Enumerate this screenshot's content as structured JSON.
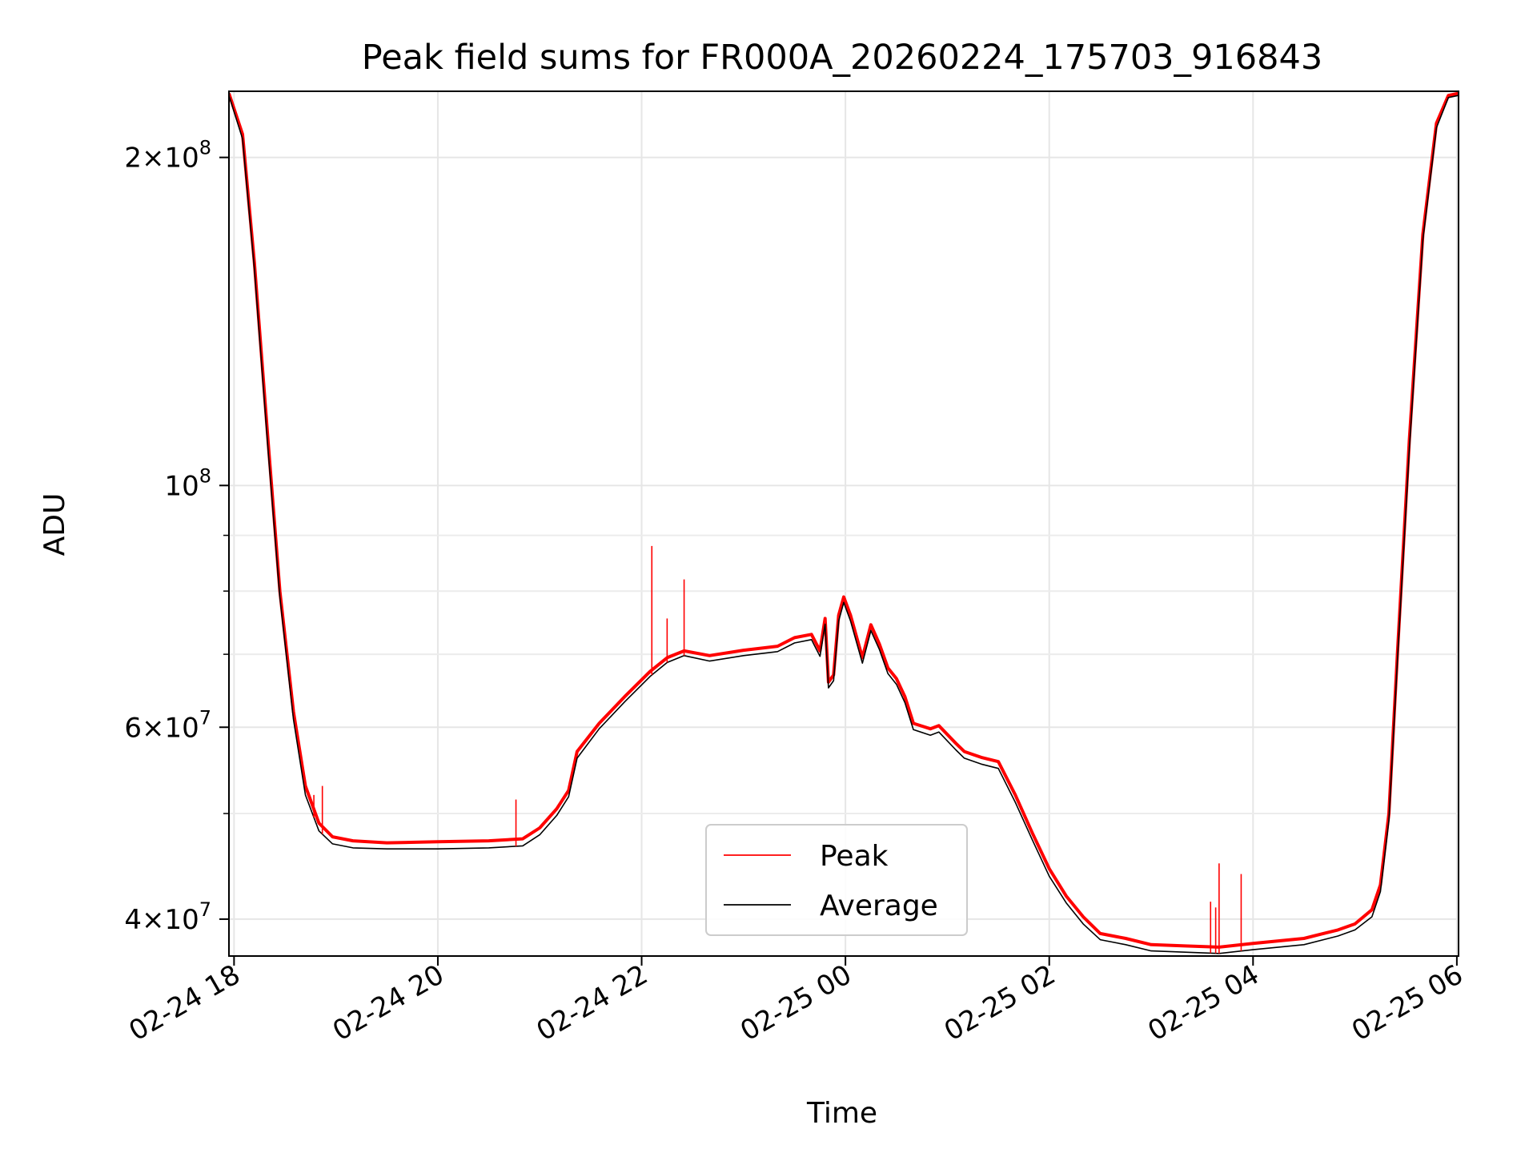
{
  "chart_data": {
    "type": "line",
    "title": "Peak field sums for FR000A_20260224_175703_916843",
    "xlabel": "Time",
    "ylabel": "ADU",
    "y_scale": "log",
    "grid": true,
    "legend_position": "lower-center",
    "x_range": [
      "02-24 17:57",
      "02-25 06:01"
    ],
    "ylim": [
      37000000,
      230000000
    ],
    "x_ticks": [
      {
        "t": "02-24 18:00",
        "label": "02-24 18"
      },
      {
        "t": "02-24 20:00",
        "label": "02-24 20"
      },
      {
        "t": "02-24 22:00",
        "label": "02-24 22"
      },
      {
        "t": "02-25 00:00",
        "label": "02-25 00"
      },
      {
        "t": "02-25 02:00",
        "label": "02-25 02"
      },
      {
        "t": "02-25 04:00",
        "label": "02-25 04"
      },
      {
        "t": "02-25 06:00",
        "label": "02-25 06"
      }
    ],
    "y_ticks": [
      {
        "value": 40000000,
        "mantissa": "4",
        "exponent": "7"
      },
      {
        "value": 60000000,
        "mantissa": "6",
        "exponent": "7"
      },
      {
        "value": 100000000,
        "mantissa": "",
        "exponent": "8"
      },
      {
        "value": 200000000,
        "mantissa": "2",
        "exponent": "8"
      }
    ],
    "y_minor_ticks": [
      50000000,
      70000000,
      80000000,
      90000000
    ],
    "series": [
      {
        "name": "Peak",
        "color": "#ff0000",
        "points": [
          [
            "02-24 17:57",
            229000000
          ],
          [
            "02-24 18:05",
            210000000
          ],
          [
            "02-24 18:12",
            160000000
          ],
          [
            "02-24 18:20",
            110000000
          ],
          [
            "02-24 18:27",
            80000000
          ],
          [
            "02-24 18:35",
            62000000
          ],
          [
            "02-24 18:42",
            53000000
          ],
          [
            "02-24 18:50",
            49000000
          ],
          [
            "02-24 18:58",
            47600000
          ],
          [
            "02-24 19:10",
            47200000
          ],
          [
            "02-24 19:30",
            47000000
          ],
          [
            "02-24 20:00",
            47100000
          ],
          [
            "02-24 20:30",
            47200000
          ],
          [
            "02-24 20:50",
            47400000
          ],
          [
            "02-24 21:00",
            48500000
          ],
          [
            "02-24 21:10",
            50500000
          ],
          [
            "02-24 21:17",
            52500000
          ],
          [
            "02-24 21:22",
            57000000
          ],
          [
            "02-24 21:35",
            60500000
          ],
          [
            "02-24 21:50",
            64000000
          ],
          [
            "02-24 22:05",
            67500000
          ],
          [
            "02-24 22:15",
            69500000
          ],
          [
            "02-24 22:25",
            70500000
          ],
          [
            "02-24 22:40",
            69800000
          ],
          [
            "02-24 23:00",
            70600000
          ],
          [
            "02-24 23:20",
            71200000
          ],
          [
            "02-24 23:30",
            72500000
          ],
          [
            "02-24 23:40",
            73000000
          ],
          [
            "02-24 23:45",
            70500000
          ],
          [
            "02-24 23:48",
            75500000
          ],
          [
            "02-24 23:50",
            66000000
          ],
          [
            "02-24 23:53",
            67000000
          ],
          [
            "02-24 23:56",
            76000000
          ],
          [
            "02-24 23:59",
            79000000
          ],
          [
            "02-25 00:03",
            76000000
          ],
          [
            "02-25 00:10",
            69500000
          ],
          [
            "02-25 00:15",
            74500000
          ],
          [
            "02-25 00:20",
            71500000
          ],
          [
            "02-25 00:25",
            68000000
          ],
          [
            "02-25 00:30",
            66500000
          ],
          [
            "02-25 00:35",
            64000000
          ],
          [
            "02-25 00:40",
            60500000
          ],
          [
            "02-25 00:50",
            59800000
          ],
          [
            "02-25 00:55",
            60200000
          ],
          [
            "02-25 01:05",
            58000000
          ],
          [
            "02-25 01:10",
            57000000
          ],
          [
            "02-25 01:20",
            56300000
          ],
          [
            "02-25 01:30",
            55800000
          ],
          [
            "02-25 01:40",
            52000000
          ],
          [
            "02-25 01:50",
            48000000
          ],
          [
            "02-25 02:00",
            44500000
          ],
          [
            "02-25 02:10",
            42000000
          ],
          [
            "02-25 02:20",
            40200000
          ],
          [
            "02-25 02:30",
            38800000
          ],
          [
            "02-25 02:45",
            38400000
          ],
          [
            "02-25 03:00",
            37900000
          ],
          [
            "02-25 03:20",
            37800000
          ],
          [
            "02-25 03:40",
            37700000
          ],
          [
            "02-25 04:00",
            38000000
          ],
          [
            "02-25 04:30",
            38400000
          ],
          [
            "02-25 04:50",
            39100000
          ],
          [
            "02-25 05:00",
            39600000
          ],
          [
            "02-25 05:10",
            40800000
          ],
          [
            "02-25 05:15",
            43000000
          ],
          [
            "02-25 05:20",
            50000000
          ],
          [
            "02-25 05:25",
            70000000
          ],
          [
            "02-25 05:32",
            110000000
          ],
          [
            "02-25 05:40",
            170000000
          ],
          [
            "02-25 05:48",
            215000000
          ],
          [
            "02-25 05:55",
            228000000
          ],
          [
            "02-25 06:01",
            229000000
          ]
        ]
      },
      {
        "name": "Average",
        "color": "#000000",
        "points": [
          [
            "02-24 17:57",
            228000000
          ],
          [
            "02-24 18:05",
            208000000
          ],
          [
            "02-24 18:12",
            158000000
          ],
          [
            "02-24 18:20",
            108000000
          ],
          [
            "02-24 18:27",
            79000000
          ],
          [
            "02-24 18:35",
            61000000
          ],
          [
            "02-24 18:42",
            52000000
          ],
          [
            "02-24 18:50",
            48200000
          ],
          [
            "02-24 18:58",
            46900000
          ],
          [
            "02-24 19:10",
            46500000
          ],
          [
            "02-24 19:30",
            46400000
          ],
          [
            "02-24 20:00",
            46400000
          ],
          [
            "02-24 20:30",
            46500000
          ],
          [
            "02-24 20:50",
            46700000
          ],
          [
            "02-24 21:00",
            47800000
          ],
          [
            "02-24 21:10",
            49800000
          ],
          [
            "02-24 21:17",
            51800000
          ],
          [
            "02-24 21:22",
            56200000
          ],
          [
            "02-24 21:35",
            59800000
          ],
          [
            "02-24 21:50",
            63300000
          ],
          [
            "02-24 22:05",
            66800000
          ],
          [
            "02-24 22:15",
            68800000
          ],
          [
            "02-24 22:25",
            69800000
          ],
          [
            "02-24 22:40",
            69000000
          ],
          [
            "02-24 23:00",
            69800000
          ],
          [
            "02-24 23:20",
            70400000
          ],
          [
            "02-24 23:30",
            71700000
          ],
          [
            "02-24 23:40",
            72200000
          ],
          [
            "02-24 23:45",
            69700000
          ],
          [
            "02-24 23:48",
            74600000
          ],
          [
            "02-24 23:50",
            65200000
          ],
          [
            "02-24 23:53",
            66200000
          ],
          [
            "02-24 23:56",
            75100000
          ],
          [
            "02-24 23:59",
            78100000
          ],
          [
            "02-25 00:03",
            75100000
          ],
          [
            "02-25 00:10",
            68700000
          ],
          [
            "02-25 00:15",
            73600000
          ],
          [
            "02-25 00:20",
            70700000
          ],
          [
            "02-25 00:25",
            67200000
          ],
          [
            "02-25 00:30",
            65700000
          ],
          [
            "02-25 00:35",
            63200000
          ],
          [
            "02-25 00:40",
            59700000
          ],
          [
            "02-25 00:50",
            59000000
          ],
          [
            "02-25 00:55",
            59400000
          ],
          [
            "02-25 01:05",
            57200000
          ],
          [
            "02-25 01:10",
            56200000
          ],
          [
            "02-25 01:20",
            55500000
          ],
          [
            "02-25 01:30",
            55000000
          ],
          [
            "02-25 01:40",
            51200000
          ],
          [
            "02-25 01:50",
            47300000
          ],
          [
            "02-25 02:00",
            43800000
          ],
          [
            "02-25 02:10",
            41400000
          ],
          [
            "02-25 02:20",
            39600000
          ],
          [
            "02-25 02:30",
            38300000
          ],
          [
            "02-25 02:45",
            37900000
          ],
          [
            "02-25 03:00",
            37400000
          ],
          [
            "02-25 03:20",
            37300000
          ],
          [
            "02-25 03:40",
            37200000
          ],
          [
            "02-25 04:00",
            37500000
          ],
          [
            "02-25 04:30",
            37900000
          ],
          [
            "02-25 04:50",
            38600000
          ],
          [
            "02-25 05:00",
            39100000
          ],
          [
            "02-25 05:10",
            40200000
          ],
          [
            "02-25 05:15",
            42400000
          ],
          [
            "02-25 05:20",
            49300000
          ],
          [
            "02-25 05:25",
            69000000
          ],
          [
            "02-25 05:32",
            108000000
          ],
          [
            "02-25 05:40",
            168000000
          ],
          [
            "02-25 05:48",
            213000000
          ],
          [
            "02-25 05:55",
            227000000
          ],
          [
            "02-25 06:01",
            228000000
          ]
        ]
      }
    ],
    "peak_spikes": [
      [
        "02-24 18:47",
        52000000
      ],
      [
        "02-24 18:52",
        53000000
      ],
      [
        "02-24 20:46",
        51500000
      ],
      [
        "02-24 22:06",
        88000000
      ],
      [
        "02-24 22:15",
        75500000
      ],
      [
        "02-24 22:25",
        82000000
      ],
      [
        "02-25 03:35",
        41500000
      ],
      [
        "02-25 03:38",
        41000000
      ],
      [
        "02-25 03:40",
        45000000
      ],
      [
        "02-25 03:53",
        44000000
      ]
    ]
  }
}
